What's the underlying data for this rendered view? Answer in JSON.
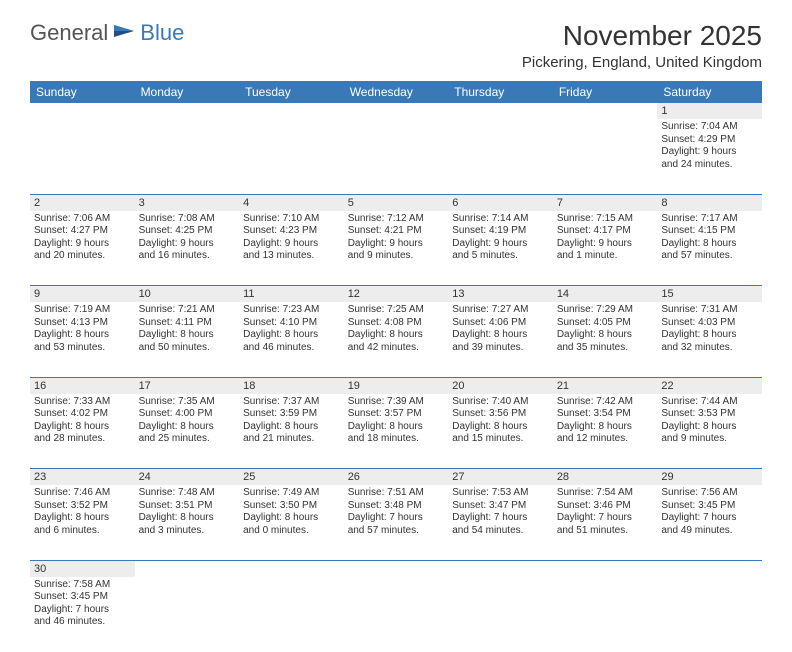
{
  "logo": {
    "general": "General",
    "blue": "Blue"
  },
  "title": "November 2025",
  "location": "Pickering, England, United Kingdom",
  "colors": {
    "header_bg": "#3a79b7",
    "header_text": "#ffffff",
    "daynum_bg": "#ededed",
    "border": "#3a79b7",
    "text": "#333333"
  },
  "fonts": {
    "title_size": 28,
    "location_size": 15,
    "header_size": 12,
    "daynum_size": 11,
    "cell_size": 10
  },
  "weekdays": [
    "Sunday",
    "Monday",
    "Tuesday",
    "Wednesday",
    "Thursday",
    "Friday",
    "Saturday"
  ],
  "weeks": [
    {
      "nums": [
        "",
        "",
        "",
        "",
        "",
        "",
        "1"
      ],
      "cells": [
        null,
        null,
        null,
        null,
        null,
        null,
        {
          "sunrise": "Sunrise: 7:04 AM",
          "sunset": "Sunset: 4:29 PM",
          "day1": "Daylight: 9 hours",
          "day2": "and 24 minutes."
        }
      ]
    },
    {
      "nums": [
        "2",
        "3",
        "4",
        "5",
        "6",
        "7",
        "8"
      ],
      "cells": [
        {
          "sunrise": "Sunrise: 7:06 AM",
          "sunset": "Sunset: 4:27 PM",
          "day1": "Daylight: 9 hours",
          "day2": "and 20 minutes."
        },
        {
          "sunrise": "Sunrise: 7:08 AM",
          "sunset": "Sunset: 4:25 PM",
          "day1": "Daylight: 9 hours",
          "day2": "and 16 minutes."
        },
        {
          "sunrise": "Sunrise: 7:10 AM",
          "sunset": "Sunset: 4:23 PM",
          "day1": "Daylight: 9 hours",
          "day2": "and 13 minutes."
        },
        {
          "sunrise": "Sunrise: 7:12 AM",
          "sunset": "Sunset: 4:21 PM",
          "day1": "Daylight: 9 hours",
          "day2": "and 9 minutes."
        },
        {
          "sunrise": "Sunrise: 7:14 AM",
          "sunset": "Sunset: 4:19 PM",
          "day1": "Daylight: 9 hours",
          "day2": "and 5 minutes."
        },
        {
          "sunrise": "Sunrise: 7:15 AM",
          "sunset": "Sunset: 4:17 PM",
          "day1": "Daylight: 9 hours",
          "day2": "and 1 minute."
        },
        {
          "sunrise": "Sunrise: 7:17 AM",
          "sunset": "Sunset: 4:15 PM",
          "day1": "Daylight: 8 hours",
          "day2": "and 57 minutes."
        }
      ]
    },
    {
      "nums": [
        "9",
        "10",
        "11",
        "12",
        "13",
        "14",
        "15"
      ],
      "cells": [
        {
          "sunrise": "Sunrise: 7:19 AM",
          "sunset": "Sunset: 4:13 PM",
          "day1": "Daylight: 8 hours",
          "day2": "and 53 minutes."
        },
        {
          "sunrise": "Sunrise: 7:21 AM",
          "sunset": "Sunset: 4:11 PM",
          "day1": "Daylight: 8 hours",
          "day2": "and 50 minutes."
        },
        {
          "sunrise": "Sunrise: 7:23 AM",
          "sunset": "Sunset: 4:10 PM",
          "day1": "Daylight: 8 hours",
          "day2": "and 46 minutes."
        },
        {
          "sunrise": "Sunrise: 7:25 AM",
          "sunset": "Sunset: 4:08 PM",
          "day1": "Daylight: 8 hours",
          "day2": "and 42 minutes."
        },
        {
          "sunrise": "Sunrise: 7:27 AM",
          "sunset": "Sunset: 4:06 PM",
          "day1": "Daylight: 8 hours",
          "day2": "and 39 minutes."
        },
        {
          "sunrise": "Sunrise: 7:29 AM",
          "sunset": "Sunset: 4:05 PM",
          "day1": "Daylight: 8 hours",
          "day2": "and 35 minutes."
        },
        {
          "sunrise": "Sunrise: 7:31 AM",
          "sunset": "Sunset: 4:03 PM",
          "day1": "Daylight: 8 hours",
          "day2": "and 32 minutes."
        }
      ]
    },
    {
      "nums": [
        "16",
        "17",
        "18",
        "19",
        "20",
        "21",
        "22"
      ],
      "cells": [
        {
          "sunrise": "Sunrise: 7:33 AM",
          "sunset": "Sunset: 4:02 PM",
          "day1": "Daylight: 8 hours",
          "day2": "and 28 minutes."
        },
        {
          "sunrise": "Sunrise: 7:35 AM",
          "sunset": "Sunset: 4:00 PM",
          "day1": "Daylight: 8 hours",
          "day2": "and 25 minutes."
        },
        {
          "sunrise": "Sunrise: 7:37 AM",
          "sunset": "Sunset: 3:59 PM",
          "day1": "Daylight: 8 hours",
          "day2": "and 21 minutes."
        },
        {
          "sunrise": "Sunrise: 7:39 AM",
          "sunset": "Sunset: 3:57 PM",
          "day1": "Daylight: 8 hours",
          "day2": "and 18 minutes."
        },
        {
          "sunrise": "Sunrise: 7:40 AM",
          "sunset": "Sunset: 3:56 PM",
          "day1": "Daylight: 8 hours",
          "day2": "and 15 minutes."
        },
        {
          "sunrise": "Sunrise: 7:42 AM",
          "sunset": "Sunset: 3:54 PM",
          "day1": "Daylight: 8 hours",
          "day2": "and 12 minutes."
        },
        {
          "sunrise": "Sunrise: 7:44 AM",
          "sunset": "Sunset: 3:53 PM",
          "day1": "Daylight: 8 hours",
          "day2": "and 9 minutes."
        }
      ]
    },
    {
      "nums": [
        "23",
        "24",
        "25",
        "26",
        "27",
        "28",
        "29"
      ],
      "cells": [
        {
          "sunrise": "Sunrise: 7:46 AM",
          "sunset": "Sunset: 3:52 PM",
          "day1": "Daylight: 8 hours",
          "day2": "and 6 minutes."
        },
        {
          "sunrise": "Sunrise: 7:48 AM",
          "sunset": "Sunset: 3:51 PM",
          "day1": "Daylight: 8 hours",
          "day2": "and 3 minutes."
        },
        {
          "sunrise": "Sunrise: 7:49 AM",
          "sunset": "Sunset: 3:50 PM",
          "day1": "Daylight: 8 hours",
          "day2": "and 0 minutes."
        },
        {
          "sunrise": "Sunrise: 7:51 AM",
          "sunset": "Sunset: 3:48 PM",
          "day1": "Daylight: 7 hours",
          "day2": "and 57 minutes."
        },
        {
          "sunrise": "Sunrise: 7:53 AM",
          "sunset": "Sunset: 3:47 PM",
          "day1": "Daylight: 7 hours",
          "day2": "and 54 minutes."
        },
        {
          "sunrise": "Sunrise: 7:54 AM",
          "sunset": "Sunset: 3:46 PM",
          "day1": "Daylight: 7 hours",
          "day2": "and 51 minutes."
        },
        {
          "sunrise": "Sunrise: 7:56 AM",
          "sunset": "Sunset: 3:45 PM",
          "day1": "Daylight: 7 hours",
          "day2": "and 49 minutes."
        }
      ]
    },
    {
      "nums": [
        "30",
        "",
        "",
        "",
        "",
        "",
        ""
      ],
      "cells": [
        {
          "sunrise": "Sunrise: 7:58 AM",
          "sunset": "Sunset: 3:45 PM",
          "day1": "Daylight: 7 hours",
          "day2": "and 46 minutes."
        },
        null,
        null,
        null,
        null,
        null,
        null
      ]
    }
  ]
}
